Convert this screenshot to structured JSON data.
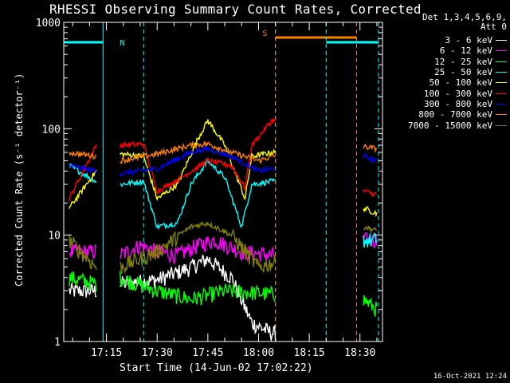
{
  "chart_data": {
    "type": "line",
    "title": "RHESSI Observing Summary Count Rates, Corrected",
    "xlabel": "Start Time (14-Jun-02 17:02:22)",
    "ylabel": "Corrected Count Rate (s⁻¹ detector⁻¹)",
    "x_ticks": [
      "17:15",
      "17:30",
      "17:45",
      "18:00",
      "18:15",
      "18:30"
    ],
    "y_ticks": [
      "1",
      "10",
      "100",
      "1000"
    ],
    "y_scale": "log",
    "ylim": [
      1,
      1000
    ],
    "xlim": [
      "17:02:22",
      "18:36:40"
    ],
    "legend_header": [
      "Det 1,3,4,5,6,9,",
      "Att 0"
    ],
    "stamp": "16-Oct-2021 12:24",
    "annotations": {
      "night": "N",
      "saa": "S"
    },
    "bands": [
      {
        "start": "17:02:22",
        "end": "17:14:00",
        "level": 650,
        "color": "#00ffff",
        "edge": "solid"
      },
      {
        "start": "17:26:00",
        "end": "18:05:00",
        "level": null,
        "color": "#00ffff",
        "edge": "dashed"
      },
      {
        "start": "18:05:00",
        "end": "18:29:00",
        "level": 720,
        "color": "#ff8000",
        "edge": "dashed"
      },
      {
        "start": "18:20:00",
        "end": "18:35:30",
        "level": 650,
        "color": "#00ffff",
        "edge": "dashed"
      }
    ],
    "segments": [
      {
        "start": "17:04",
        "end": "17:12"
      },
      {
        "start": "17:19",
        "end": "18:05"
      },
      {
        "start": "18:31",
        "end": "18:35"
      }
    ],
    "series": [
      {
        "name": "3 - 6 keV",
        "color": "#ffffff",
        "values": {
          "17:04": 3.0,
          "17:12": 3.0,
          "17:19": 3.5,
          "17:30": 3.8,
          "17:40": 5.0,
          "17:45": 6.0,
          "17:52": 4.0,
          "17:58": 1.5,
          "18:04": 1.2
        }
      },
      {
        "name": "6 - 12 keV",
        "color": "#ff00ff",
        "values": {
          "17:04": 7.0,
          "17:12": 7.0,
          "17:19": 6.5,
          "17:25": 8.0,
          "17:30": 7.0,
          "17:36": 6.5,
          "17:42": 8.0,
          "17:47": 9.0,
          "17:55": 7.0,
          "18:04": 6.5,
          "18:31": 9.0,
          "18:35": 9.0
        }
      },
      {
        "name": "12 - 25 keV",
        "color": "#00ff00",
        "values": {
          "17:04": 4.0,
          "17:12": 3.5,
          "17:19": 4.0,
          "17:30": 3.0,
          "17:40": 2.5,
          "17:50": 3.0,
          "18:04": 2.8,
          "18:31": 2.5,
          "18:35": 2.0
        }
      },
      {
        "name": "25 - 50 keV",
        "color": "#00ffff",
        "values": {
          "17:04": 45.0,
          "17:12": 32.0,
          "17:19": 30.0,
          "17:26": 32.0,
          "17:30": 12.0,
          "17:36": 13.0,
          "17:40": 30.0,
          "17:45": 50.0,
          "17:50": 35.0,
          "17:55": 12.0,
          "17:58": 30.0,
          "18:04": 32.0,
          "18:31": 9.0,
          "18:35": 9.0
        }
      },
      {
        "name": "50 - 100 keV",
        "color": "#ffff00",
        "values": {
          "17:04": 18.0,
          "17:12": 40.0,
          "17:19": 58.0,
          "17:26": 55.0,
          "17:30": 22.0,
          "17:36": 30.0,
          "17:42": 80.0,
          "17:45": 120.0,
          "17:50": 70.0,
          "17:56": 22.0,
          "17:58": 55.0,
          "18:04": 60.0,
          "18:31": 18.0,
          "18:35": 16.0
        }
      },
      {
        "name": "100 - 300 keV",
        "color": "#ff0000",
        "values": {
          "17:04": 22.0,
          "17:12": 70.0,
          "17:19": 70.0,
          "17:26": 72.0,
          "17:30": 26.0,
          "17:36": 33.0,
          "17:45": 50.0,
          "17:52": 45.0,
          "17:56": 28.0,
          "17:58": 70.0,
          "18:04": 120.0,
          "18:31": 26.0,
          "18:35": 24.0
        }
      },
      {
        "name": "300 - 800 keV",
        "color": "#0000ff",
        "values": {
          "17:04": 45.0,
          "17:12": 40.0,
          "17:19": 38.0,
          "17:30": 42.0,
          "17:40": 60.0,
          "17:45": 65.0,
          "17:52": 55.0,
          "18:00": 40.0,
          "18:04": 42.0,
          "18:31": 55.0,
          "18:35": 50.0
        }
      },
      {
        "name": "800 - 7000 keV",
        "color": "#ff8000",
        "values": {
          "17:04": 60.0,
          "17:12": 55.0,
          "17:19": 50.0,
          "17:30": 58.0,
          "17:40": 70.0,
          "17:45": 72.0,
          "17:52": 60.0,
          "18:00": 50.0,
          "18:04": 55.0,
          "18:31": 68.0,
          "18:35": 65.0
        }
      },
      {
        "name": "7000 - 15000 keV",
        "color": "#808000",
        "values": {
          "17:04": 9.0,
          "17:12": 5.0,
          "17:19": 5.0,
          "17:30": 7.0,
          "17:40": 12.0,
          "17:45": 13.0,
          "17:52": 10.0,
          "18:00": 5.0,
          "18:04": 5.5,
          "18:31": 12.0,
          "18:35": 11.0
        }
      }
    ]
  }
}
